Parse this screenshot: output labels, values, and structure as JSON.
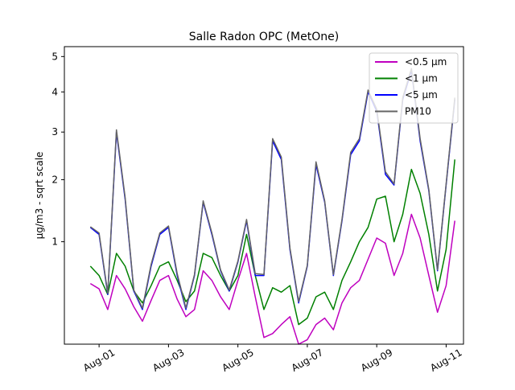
{
  "chart_data": {
    "type": "line",
    "title": "Salle Radon OPC (MetOne)",
    "xlabel": "",
    "ylabel": "µg/m3 - sqrt scale",
    "y_scale": "sqrt",
    "x_range": [
      "2024-07-31T00:00",
      "2024-08-11T12:00"
    ],
    "y_range": [
      0.1,
      5.3
    ],
    "x_ticks": [
      "Aug-01",
      "Aug-03",
      "Aug-05",
      "Aug-07",
      "Aug-09",
      "Aug-11"
    ],
    "y_ticks": [
      1,
      2,
      3,
      4,
      5
    ],
    "grid": false,
    "legend_position": "top-right",
    "x": [
      "07-31 18:00",
      "08-01 00:00",
      "08-01 06:00",
      "08-01 12:00",
      "08-01 18:00",
      "08-02 00:00",
      "08-02 06:00",
      "08-02 12:00",
      "08-02 18:00",
      "08-03 00:00",
      "08-03 06:00",
      "08-03 12:00",
      "08-03 18:00",
      "08-04 00:00",
      "08-04 06:00",
      "08-04 12:00",
      "08-04 18:00",
      "08-05 00:00",
      "08-05 06:00",
      "08-05 12:00",
      "08-05 18:00",
      "08-06 00:00",
      "08-06 06:00",
      "08-06 12:00",
      "08-06 18:00",
      "08-07 00:00",
      "08-07 06:00",
      "08-07 12:00",
      "08-07 18:00",
      "08-08 00:00",
      "08-08 06:00",
      "08-08 12:00",
      "08-08 18:00",
      "08-09 00:00",
      "08-09 06:00",
      "08-09 12:00",
      "08-09 18:00",
      "08-10 00:00",
      "08-10 06:00",
      "08-10 12:00",
      "08-10 18:00",
      "08-11 00:00",
      "08-11 06:00"
    ],
    "series": [
      {
        "name": "<0.5 µm",
        "color": "#bf00bf",
        "values": [
          0.52,
          0.47,
          0.3,
          0.6,
          0.47,
          0.32,
          0.22,
          0.37,
          0.55,
          0.6,
          0.38,
          0.25,
          0.3,
          0.65,
          0.55,
          0.4,
          0.3,
          0.55,
          0.85,
          0.4,
          0.13,
          0.15,
          0.2,
          0.25,
          0.1,
          0.12,
          0.2,
          0.24,
          0.17,
          0.35,
          0.48,
          0.55,
          0.78,
          1.05,
          0.98,
          0.6,
          0.85,
          1.4,
          1.05,
          0.6,
          0.28,
          0.5,
          1.3
        ]
      },
      {
        "name": "<1 µm",
        "color": "#008000",
        "values": [
          0.7,
          0.6,
          0.42,
          0.85,
          0.7,
          0.45,
          0.35,
          0.5,
          0.7,
          0.75,
          0.55,
          0.36,
          0.45,
          0.85,
          0.8,
          0.6,
          0.45,
          0.6,
          1.1,
          0.6,
          0.3,
          0.48,
          0.44,
          0.5,
          0.2,
          0.24,
          0.4,
          0.44,
          0.3,
          0.55,
          0.75,
          1.0,
          1.2,
          1.65,
          1.7,
          1.0,
          1.4,
          2.2,
          1.75,
          1.1,
          0.45,
          0.9,
          2.4
        ]
      },
      {
        "name": "<5 µm",
        "color": "#0000ff",
        "values": [
          1.2,
          1.1,
          0.42,
          3.0,
          1.65,
          0.45,
          0.3,
          0.7,
          1.1,
          1.2,
          0.6,
          0.3,
          0.6,
          1.6,
          1.1,
          0.65,
          0.45,
          0.75,
          1.3,
          0.6,
          0.6,
          2.8,
          2.4,
          0.9,
          0.35,
          0.7,
          2.3,
          1.6,
          0.6,
          1.3,
          2.5,
          2.8,
          4.0,
          3.5,
          2.1,
          1.9,
          3.8,
          4.6,
          2.8,
          1.8,
          0.65,
          1.9,
          3.8
        ]
      },
      {
        "name": "PM10",
        "color": "#646464",
        "values": [
          1.21,
          1.12,
          0.43,
          3.05,
          1.68,
          0.46,
          0.31,
          0.72,
          1.12,
          1.22,
          0.62,
          0.31,
          0.61,
          1.62,
          1.12,
          0.66,
          0.46,
          0.76,
          1.32,
          0.62,
          0.61,
          2.85,
          2.45,
          0.92,
          0.36,
          0.71,
          2.35,
          1.62,
          0.61,
          1.32,
          2.55,
          2.85,
          4.05,
          3.55,
          2.15,
          1.92,
          3.85,
          4.65,
          2.85,
          1.82,
          0.66,
          1.92,
          3.85
        ]
      }
    ]
  }
}
